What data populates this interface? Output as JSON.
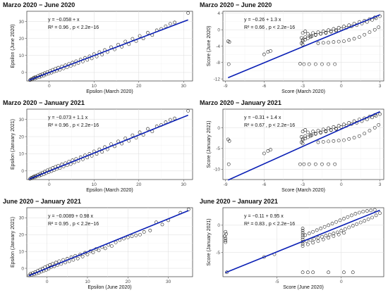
{
  "chart_data": [
    {
      "type": "scatter",
      "title": "Marzo 2020 − June 2020",
      "xlabel": "Epsilon (March 2020)",
      "ylabel": "Epsilon (June 2020)",
      "xlim": [
        -5,
        32
      ],
      "ylim": [
        -5,
        36
      ],
      "xticks": [
        0,
        10,
        20,
        30
      ],
      "yticks": [
        0,
        10,
        20,
        30
      ],
      "equation": "y = −0.058 + x",
      "stats": "R² = 0.96 , p < 2.2e−16",
      "fit": {
        "intercept": -0.058,
        "slope": 1.0,
        "x_range": [
          -4.5,
          31
        ]
      },
      "series": [
        {
          "x": [
            -4.3,
            -4.0,
            -3.8,
            -3.6,
            -3.4,
            -3.2,
            -3.0,
            -2.8,
            -2.5,
            -2.2,
            -2.0,
            -1.8,
            -1.5,
            -1.2,
            -1.0,
            -0.7,
            -0.4,
            -0.1,
            0.2,
            0.5,
            0.8,
            1.1,
            1.4,
            1.7,
            2.0,
            2.4,
            2.8,
            3.2,
            3.6,
            4.0,
            4.4,
            4.8,
            5.2,
            5.6,
            6.0,
            6.5,
            7.0,
            7.5,
            8.0,
            8.5,
            9.0,
            9.5,
            10.0,
            10.6,
            11.2,
            11.8,
            12.4,
            13.0,
            13.8,
            14.6,
            15.4,
            16.2,
            17.0,
            17.8,
            18.6,
            19.4,
            20.2,
            21.0,
            22.0,
            23.0,
            24.0,
            25.0,
            26.0,
            27.0,
            28.0,
            31.0
          ],
          "y": [
            -4.5,
            -3.9,
            -4.1,
            -3.5,
            -3.0,
            -3.6,
            -2.6,
            -3.1,
            -2.0,
            -2.8,
            -1.5,
            -2.3,
            -1.0,
            -1.8,
            -0.4,
            -1.2,
            0.3,
            -0.6,
            0.9,
            -0.1,
            1.6,
            0.5,
            2.2,
            1.1,
            2.8,
            1.6,
            3.5,
            2.4,
            4.2,
            3.1,
            5.0,
            3.8,
            5.8,
            4.6,
            6.6,
            5.6,
            7.6,
            6.5,
            8.6,
            7.4,
            9.5,
            8.3,
            10.8,
            9.4,
            12.0,
            10.5,
            13.2,
            12.0,
            14.9,
            13.6,
            16.4,
            15.1,
            18.2,
            16.6,
            19.8,
            18.4,
            21.5,
            20.0,
            23.4,
            22.0,
            24.8,
            25.6,
            27.2,
            28.6,
            29.4,
            35.0
          ]
        }
      ]
    },
    {
      "type": "scatter",
      "title": "Marzo 2020 − June 2020",
      "xlabel": "Score (March 2020)",
      "ylabel": "Score (June 2020)",
      "xlim": [
        -9.2,
        3.3
      ],
      "ylim": [
        -12.5,
        4.5
      ],
      "xticks": [
        -9,
        -6,
        -3,
        0,
        3
      ],
      "yticks": [
        -12,
        -8,
        -4,
        0,
        4
      ],
      "equation": "y = −0.26 + 1.3 x",
      "stats": "R² = 0.66 , p < 2.2e−16",
      "fit": {
        "intercept": -0.26,
        "slope": 1.3,
        "x_range": [
          -8.8,
          3.0
        ]
      },
      "series": [
        {
          "x": [
            -8.8,
            -8.7,
            -8.75,
            -6.0,
            -5.7,
            -5.5,
            -3.2,
            -3.1,
            -3.0,
            -3.0,
            -3.0,
            -2.8,
            -2.6,
            -2.4,
            -2.3,
            -2.0,
            -1.6,
            -1.2,
            -0.8,
            -0.4,
            -2.9,
            -2.5,
            -2.0,
            -1.5,
            -1.0,
            -0.5,
            -3.1,
            -2.8,
            -2.4,
            -2.0,
            -1.6,
            -1.2,
            -0.8,
            -0.4,
            0.0,
            0.4,
            0.8,
            1.2,
            1.6,
            2.0,
            2.4,
            2.7,
            3.0,
            -1.8,
            -1.4,
            -1.0,
            -0.6,
            -0.2,
            0.2,
            0.6,
            1.0,
            1.4,
            1.8,
            2.2,
            2.6,
            2.9,
            -2.6,
            -2.2,
            -1.8,
            -1.4,
            -1.0,
            -0.6,
            -0.2,
            0.2,
            0.6,
            1.0,
            1.4,
            1.8,
            2.2,
            2.6,
            -3.0,
            -2.8
          ],
          "y": [
            -2.8,
            -3.0,
            -8.4,
            -6.0,
            -5.4,
            -5.2,
            -8.3,
            -3.3,
            -3.6,
            -2.8,
            -2.5,
            -2.4,
            -2.1,
            -1.8,
            -1.6,
            -1.3,
            -1.0,
            -0.8,
            -0.5,
            -0.3,
            -8.4,
            -8.4,
            -8.4,
            -8.4,
            -8.4,
            -8.4,
            -2.0,
            -1.8,
            -1.5,
            -1.2,
            -1.0,
            -0.7,
            -0.4,
            -0.1,
            0.2,
            0.5,
            0.8,
            1.1,
            1.5,
            1.9,
            2.4,
            2.8,
            3.3,
            -3.3,
            -3.2,
            -3.1,
            -3.0,
            -2.9,
            -2.8,
            -2.5,
            -2.2,
            -1.8,
            -1.2,
            -0.6,
            0.0,
            0.6,
            -1.0,
            -0.8,
            -0.6,
            -0.4,
            -0.1,
            0.2,
            0.5,
            0.8,
            1.1,
            1.5,
            1.9,
            2.2,
            2.6,
            3.0,
            -0.8,
            -0.4
          ]
        }
      ]
    },
    {
      "type": "scatter",
      "title": "Marzo 2020 − January 2021",
      "xlabel": "Epsilon (March 2020)",
      "ylabel": "Epsilon (January 2021)",
      "xlim": [
        -5,
        32
      ],
      "ylim": [
        -5,
        36
      ],
      "xticks": [
        0,
        10,
        20,
        30
      ],
      "yticks": [
        0,
        10,
        20,
        30
      ],
      "equation": "y = −0.073 + 1.1 x",
      "stats": "R² = 0.96 , p < 2.2e−16",
      "fit": {
        "intercept": -0.073,
        "slope": 1.05,
        "x_range": [
          -4.5,
          31
        ]
      },
      "series": [
        {
          "x": [
            -4.3,
            -4.0,
            -3.8,
            -3.6,
            -3.4,
            -3.2,
            -3.0,
            -2.8,
            -2.5,
            -2.2,
            -2.0,
            -1.8,
            -1.5,
            -1.2,
            -1.0,
            -0.7,
            -0.4,
            -0.1,
            0.2,
            0.5,
            0.8,
            1.1,
            1.4,
            1.7,
            2.0,
            2.4,
            2.8,
            3.2,
            3.6,
            4.0,
            4.4,
            4.8,
            5.2,
            5.6,
            6.0,
            6.5,
            7.0,
            7.5,
            8.0,
            8.5,
            9.0,
            9.5,
            10.0,
            10.6,
            11.2,
            11.8,
            12.4,
            13.0,
            13.8,
            14.6,
            15.4,
            16.2,
            17.0,
            17.8,
            18.6,
            19.4,
            20.2,
            21.0,
            22.0,
            23.0,
            24.0,
            25.0,
            26.0,
            27.0,
            28.0,
            31.0
          ],
          "y": [
            -4.6,
            -4.0,
            -4.2,
            -3.6,
            -3.2,
            -3.7,
            -2.8,
            -3.2,
            -2.2,
            -2.9,
            -1.6,
            -2.4,
            -1.0,
            -1.9,
            -0.4,
            -1.3,
            0.4,
            -0.6,
            1.0,
            -0.1,
            1.7,
            0.5,
            2.4,
            1.2,
            3.0,
            1.7,
            3.8,
            2.6,
            4.5,
            3.3,
            5.4,
            4.0,
            6.2,
            4.9,
            7.0,
            5.9,
            8.0,
            6.8,
            9.1,
            7.8,
            10.0,
            8.8,
            11.4,
            9.9,
            12.6,
            11.1,
            13.9,
            12.6,
            15.6,
            14.3,
            17.2,
            15.9,
            19.0,
            17.5,
            20.8,
            19.3,
            22.5,
            21.0,
            24.5,
            23.0,
            26.0,
            26.8,
            28.4,
            29.8,
            30.6,
            35.0
          ]
        }
      ]
    },
    {
      "type": "scatter",
      "title": "Marzo 2020 − January 2021",
      "xlabel": "Score (March 2020)",
      "ylabel": "Score (January 2021)",
      "xlim": [
        -9.2,
        3.3
      ],
      "ylim": [
        -12.5,
        4.5
      ],
      "xticks": [
        -9,
        -6,
        -3,
        0,
        3
      ],
      "yticks": [
        -10,
        -5,
        0
      ],
      "equation": "y = −0.31 + 1.4 x",
      "stats": "R² = 0.67 , p < 2.2e−16",
      "fit": {
        "intercept": -0.31,
        "slope": 1.4,
        "x_range": [
          -8.8,
          3.0
        ]
      },
      "series": [
        {
          "x": [
            -8.8,
            -8.7,
            -8.75,
            -6.0,
            -5.7,
            -5.5,
            -3.2,
            -3.1,
            -3.0,
            -3.0,
            -3.0,
            -2.8,
            -2.6,
            -2.4,
            -2.3,
            -2.0,
            -1.6,
            -1.2,
            -0.8,
            -0.4,
            -2.9,
            -2.5,
            -2.0,
            -1.5,
            -1.0,
            -0.5,
            -3.1,
            -2.8,
            -2.4,
            -2.0,
            -1.6,
            -1.2,
            -0.8,
            -0.4,
            0.0,
            0.4,
            0.8,
            1.2,
            1.6,
            2.0,
            2.4,
            2.7,
            3.0,
            -1.8,
            -1.4,
            -1.0,
            -0.6,
            -0.2,
            0.2,
            0.6,
            1.0,
            1.4,
            1.8,
            2.2,
            2.6,
            2.9,
            -2.6,
            -2.2,
            -1.8,
            -1.4,
            -1.0,
            -0.6,
            -0.2,
            0.2,
            0.6,
            1.0,
            1.4,
            1.8,
            2.2,
            2.6,
            -3.0,
            -2.8
          ],
          "y": [
            -2.8,
            -3.2,
            -8.8,
            -6.2,
            -5.6,
            -5.3,
            -8.8,
            -3.5,
            -3.8,
            -3.0,
            -2.7,
            -2.6,
            -2.3,
            -2.0,
            -1.8,
            -1.5,
            -1.2,
            -0.9,
            -0.6,
            -0.3,
            -8.8,
            -8.8,
            -8.8,
            -8.8,
            -8.8,
            -8.8,
            -2.2,
            -2.0,
            -1.7,
            -1.4,
            -1.1,
            -0.8,
            -0.5,
            -0.2,
            0.2,
            0.5,
            0.9,
            1.2,
            1.6,
            2.0,
            2.5,
            2.9,
            3.3,
            -3.5,
            -3.4,
            -3.3,
            -3.2,
            -3.1,
            -3.0,
            -2.7,
            -2.4,
            -2.0,
            -1.4,
            -0.7,
            0.0,
            0.7,
            -1.1,
            -0.9,
            -0.7,
            -0.4,
            -0.1,
            0.2,
            0.5,
            0.8,
            1.2,
            1.6,
            2.0,
            2.3,
            2.7,
            3.1,
            -0.9,
            -0.5
          ]
        }
      ]
    },
    {
      "type": "scatter",
      "title": "June 2020 − January 2021",
      "xlabel": "Epsilon (June 2020)",
      "ylabel": "Epsilon (January 2021)",
      "xlim": [
        -5,
        36
      ],
      "ylim": [
        -5,
        36
      ],
      "xticks": [
        0,
        10,
        20,
        30
      ],
      "yticks": [
        0,
        10,
        20,
        30
      ],
      "equation": "y = −0.0089 + 0.98 x",
      "stats": "R² = 0.95 , p < 2.2e−16",
      "fit": {
        "intercept": -0.0089,
        "slope": 0.98,
        "x_range": [
          -4.5,
          35
        ]
      },
      "series": [
        {
          "x": [
            -4.4,
            -4.1,
            -3.8,
            -3.5,
            -3.2,
            -2.9,
            -2.6,
            -2.3,
            -2.0,
            -1.7,
            -1.4,
            -1.1,
            -0.8,
            -0.5,
            -0.2,
            0.1,
            0.4,
            0.7,
            1.0,
            1.4,
            1.8,
            2.2,
            2.6,
            3.0,
            3.5,
            4.0,
            4.5,
            5.0,
            5.5,
            6.0,
            6.5,
            7.0,
            7.6,
            8.2,
            8.8,
            9.4,
            10.0,
            10.7,
            11.4,
            12.1,
            12.8,
            13.6,
            14.4,
            15.2,
            16.0,
            17.0,
            18.0,
            19.0,
            20.0,
            21.0,
            22.0,
            23.0,
            24.0,
            25.5,
            27.0,
            28.5,
            30.0,
            33.0,
            35.0
          ],
          "y": [
            -4.2,
            -3.3,
            -4.0,
            -2.8,
            -3.6,
            -2.2,
            -3.1,
            -1.5,
            -2.6,
            -0.8,
            -2.0,
            -0.2,
            -1.4,
            0.6,
            -0.9,
            1.3,
            -0.2,
            2.0,
            0.6,
            2.7,
            1.2,
            3.4,
            1.9,
            4.2,
            2.6,
            5.0,
            3.4,
            5.7,
            4.2,
            6.6,
            5.0,
            7.4,
            5.8,
            8.2,
            7.0,
            9.2,
            8.2,
            10.1,
            9.4,
            11.4,
            10.6,
            12.6,
            11.8,
            13.9,
            13.2,
            15.4,
            16.8,
            17.6,
            18.4,
            19.0,
            19.6,
            20.0,
            21.6,
            22.5,
            27.3,
            26.0,
            28.5,
            33.0,
            35.0
          ]
        }
      ]
    },
    {
      "type": "scatter",
      "title": "June 2020 − January 2021",
      "xlabel": "Score (June 2020)",
      "ylabel": "Score (January 2021)",
      "xlim": [
        -9.2,
        3.3
      ],
      "ylim": [
        -9.4,
        3.2
      ],
      "xticks": [
        -5,
        0
      ],
      "yticks": [
        -5,
        0
      ],
      "equation": "y = −0.11 + 0.95 x",
      "stats": "R² = 0.83 , p < 2.2e−16",
      "fit": {
        "intercept": -0.11,
        "slope": 0.95,
        "x_range": [
          -9.0,
          3.0
        ]
      },
      "series": [
        {
          "x": [
            -9.0,
            -8.95,
            -9.05,
            -9.0,
            -9.0,
            -9.0,
            -8.9,
            -6.0,
            -5.2,
            -3.0,
            -3.0,
            -3.0,
            -3.0,
            -3.0,
            -3.0,
            -3.0,
            -3.0,
            -2.7,
            -2.4,
            -2.1,
            -1.8,
            -1.5,
            -1.2,
            -0.9,
            -0.6,
            -0.3,
            0.0,
            0.3,
            0.6,
            0.9,
            1.2,
            1.5,
            1.8,
            2.1,
            2.4,
            2.7,
            3.0,
            -2.8,
            -2.5,
            -2.2,
            -1.9,
            -1.6,
            -1.3,
            -1.0,
            -0.7,
            -0.4,
            -0.1,
            0.2,
            0.5,
            0.8,
            1.1,
            1.4,
            1.7,
            2.0,
            2.3,
            2.6,
            -3.0,
            -2.6,
            -2.2,
            -1.8,
            -1.4,
            -1.0,
            -0.6,
            -0.2,
            0.2,
            -3.0,
            -2.6,
            -2.2,
            -1.0,
            0.2,
            0.9
          ],
          "y": [
            -1.2,
            -1.6,
            -2.0,
            -2.4,
            -2.8,
            -3.1,
            -8.6,
            -5.8,
            -5.3,
            -3.4,
            -3.0,
            -2.6,
            -2.2,
            -1.8,
            -1.4,
            -1.0,
            -0.6,
            -2.9,
            -2.7,
            -2.5,
            -2.3,
            -2.1,
            -1.9,
            -1.7,
            -1.5,
            -1.3,
            -1.0,
            -0.7,
            -0.4,
            -0.1,
            0.2,
            0.5,
            0.8,
            1.1,
            1.4,
            1.8,
            2.2,
            -1.8,
            -1.5,
            -1.2,
            -0.9,
            -0.6,
            -0.3,
            0.0,
            0.3,
            0.6,
            0.9,
            1.2,
            1.5,
            1.8,
            2.1,
            2.3,
            2.5,
            2.6,
            2.7,
            2.8,
            -3.8,
            -3.5,
            -3.2,
            -2.9,
            -2.6,
            -2.3,
            -2.0,
            -1.7,
            -1.4,
            -8.6,
            -8.6,
            -8.6,
            -8.6,
            -8.6,
            -8.6
          ]
        }
      ]
    }
  ],
  "colors": {
    "points": "#111111",
    "fit_line": "#0a1fb5",
    "grid": "#dcdcdc",
    "frame": "#333333"
  }
}
